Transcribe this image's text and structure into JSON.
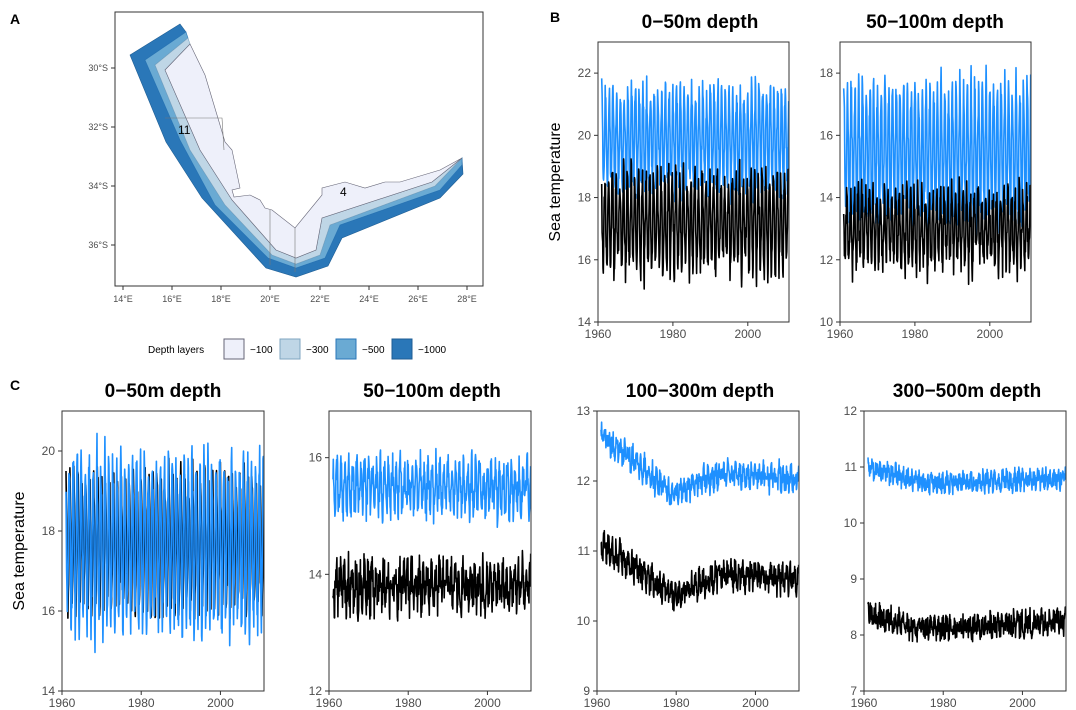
{
  "panel_labels": [
    "A",
    "B",
    "C"
  ],
  "map": {
    "lon_ticks": [
      "14°E",
      "16°E",
      "18°E",
      "20°E",
      "22°E",
      "24°E",
      "26°E",
      "28°E"
    ],
    "lat_ticks": [
      "30°S",
      "32°S",
      "34°S",
      "36°S"
    ],
    "region_labels": [
      "11",
      "4"
    ],
    "legend_title": "Depth layers",
    "legend_items": [
      {
        "label": "−100",
        "color": "#eef0fa"
      },
      {
        "label": "−300",
        "color": "#bfd6e6"
      },
      {
        "label": "−500",
        "color": "#6aaad3"
      },
      {
        "label": "−1000",
        "color": "#2a77b8"
      }
    ]
  },
  "series_colors": {
    "light": "#1e90ff",
    "dark": "#000000"
  },
  "chart_data": [
    {
      "type": "line",
      "panel": "B",
      "title": "0−50m depth",
      "ylabel": "Sea temperature",
      "xlabel": "",
      "xlim": [
        1960,
        2011
      ],
      "ylim": [
        14,
        23
      ],
      "xticks": [
        1960,
        1980,
        2000
      ],
      "yticks": [
        14,
        16,
        18,
        20,
        22
      ],
      "series": [
        {
          "color": "light",
          "start": 1961,
          "end": 2010,
          "mean": 19.9,
          "amplitude": 1.5,
          "noise": 0.35,
          "min": 17.0,
          "max": 22.7
        },
        {
          "color": "dark",
          "start": 1961,
          "end": 2010,
          "mean": 17.2,
          "amplitude": 1.4,
          "noise": 0.45,
          "min": 14.2,
          "max": 19.3
        }
      ]
    },
    {
      "type": "line",
      "panel": "B",
      "title": "50−100m depth",
      "ylabel": "",
      "xlabel": "",
      "xlim": [
        1960,
        2011
      ],
      "ylim": [
        10,
        19
      ],
      "xticks": [
        1960,
        1980,
        2000
      ],
      "yticks": [
        10,
        12,
        14,
        16,
        18
      ],
      "series": [
        {
          "color": "light",
          "start": 1961,
          "end": 2010,
          "mean": 15.5,
          "amplitude": 2.0,
          "noise": 0.4,
          "min": 12.3,
          "max": 18.7
        },
        {
          "color": "dark",
          "start": 1961,
          "end": 2010,
          "mean": 13.0,
          "amplitude": 1.1,
          "noise": 0.5,
          "min": 10.1,
          "max": 14.9
        }
      ]
    },
    {
      "type": "line",
      "panel": "C",
      "title": "0−50m depth",
      "ylabel": "Sea temperature",
      "xlabel": "",
      "xlim": [
        1960,
        2011
      ],
      "ylim": [
        14,
        21
      ],
      "xticks": [
        1960,
        1980,
        2000
      ],
      "yticks": [
        14,
        16,
        18,
        20
      ],
      "series": [
        {
          "color": "dark",
          "start": 1961,
          "end": 2010,
          "mean": 17.7,
          "amplitude": 1.6,
          "noise": 0.2,
          "min": 15.8,
          "max": 20.0
        },
        {
          "color": "light",
          "start": 1961,
          "end": 2010,
          "mean": 17.7,
          "amplitude": 2.0,
          "noise": 0.3,
          "min": 14.8,
          "max": 20.9
        }
      ]
    },
    {
      "type": "line",
      "panel": "C",
      "title": "50−100m depth",
      "ylabel": "",
      "xlabel": "",
      "xlim": [
        1960,
        2011
      ],
      "ylim": [
        12,
        16.8
      ],
      "xticks": [
        1960,
        1980,
        2000
      ],
      "yticks": [
        12,
        14,
        16
      ],
      "series": [
        {
          "color": "light",
          "start": 1961,
          "end": 2010,
          "mean": 15.5,
          "amplitude": 0.35,
          "noise": 0.28,
          "min": 14.5,
          "max": 16.7
        },
        {
          "color": "dark",
          "start": 1961,
          "end": 2010,
          "mean": 13.8,
          "amplitude": 0.25,
          "noise": 0.35,
          "min": 12.5,
          "max": 14.9
        }
      ]
    },
    {
      "type": "line",
      "panel": "C",
      "title": "100−300m depth",
      "ylabel": "",
      "xlabel": "",
      "xlim": [
        1960,
        2011
      ],
      "ylim": [
        9,
        13
      ],
      "xticks": [
        1960,
        1980,
        2000
      ],
      "yticks": [
        9,
        10,
        11,
        12,
        13
      ],
      "series": [
        {
          "color": "light",
          "start": 1961,
          "end": 2010,
          "mean": 12.1,
          "amplitude": 0.1,
          "noise": 0.15,
          "min": 11.65,
          "max": 12.95,
          "trend": [
            [
              1961,
              12.65
            ],
            [
              1970,
              12.25
            ],
            [
              1979,
              11.8
            ],
            [
              1990,
              12.1
            ],
            [
              2010,
              12.05
            ]
          ]
        },
        {
          "color": "dark",
          "start": 1961,
          "end": 2010,
          "mean": 10.7,
          "amplitude": 0.1,
          "noise": 0.17,
          "min": 9.95,
          "max": 11.6,
          "trend": [
            [
              1961,
              11.1
            ],
            [
              1970,
              10.75
            ],
            [
              1979,
              10.35
            ],
            [
              1990,
              10.65
            ],
            [
              2010,
              10.6
            ]
          ]
        }
      ]
    },
    {
      "type": "line",
      "panel": "C",
      "title": "300−500m depth",
      "ylabel": "",
      "xlabel": "",
      "xlim": [
        1960,
        2011
      ],
      "ylim": [
        7,
        12
      ],
      "xticks": [
        1960,
        1980,
        2000
      ],
      "yticks": [
        7,
        8,
        9,
        10,
        11,
        12
      ],
      "series": [
        {
          "color": "light",
          "start": 1961,
          "end": 2010,
          "mean": 10.75,
          "amplitude": 0.08,
          "noise": 0.16,
          "min": 10.1,
          "max": 11.65,
          "trend": [
            [
              1961,
              11.0
            ],
            [
              1975,
              10.7
            ],
            [
              2010,
              10.8
            ]
          ]
        },
        {
          "color": "dark",
          "start": 1961,
          "end": 2010,
          "mean": 8.2,
          "amplitude": 0.08,
          "noise": 0.2,
          "min": 7.5,
          "max": 9.2,
          "trend": [
            [
              1961,
              8.4
            ],
            [
              1975,
              8.1
            ],
            [
              2010,
              8.25
            ]
          ]
        }
      ]
    }
  ]
}
